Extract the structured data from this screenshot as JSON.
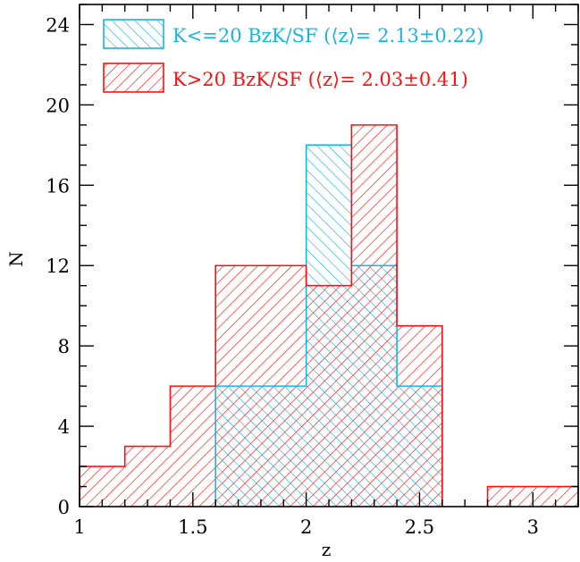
{
  "chart_data": {
    "type": "bar",
    "xlabel": "z",
    "ylabel": "N",
    "xlim": [
      1,
      3.2
    ],
    "ylim": [
      0,
      25
    ],
    "x_ticks": [
      "1",
      "1.5",
      "2",
      "2.5",
      "3"
    ],
    "y_ticks": [
      "0",
      "4",
      "8",
      "12",
      "16",
      "20",
      "24"
    ],
    "bin_width": 0.2,
    "series": [
      {
        "name": "K<=20 BzK/SF (⟨z⟩= 2.13±0.22)",
        "color": "#19b4e6",
        "hatch": "backslash",
        "bin_starts": [
          1.0,
          1.2,
          1.4,
          1.6,
          1.8,
          2.0,
          2.2,
          2.4,
          2.6,
          2.8,
          3.0
        ],
        "values": [
          0,
          0,
          0,
          6,
          6,
          18,
          12,
          6,
          0,
          0,
          0
        ]
      },
      {
        "name": "K>20 BzK/SF (⟨z⟩= 2.03±0.41)",
        "color": "#ff1010",
        "hatch": "slash",
        "bin_starts": [
          1.0,
          1.2,
          1.4,
          1.6,
          1.8,
          2.0,
          2.2,
          2.4,
          2.6,
          2.8,
          3.0
        ],
        "values": [
          2,
          3,
          6,
          12,
          12,
          11,
          19,
          9,
          0,
          1,
          1
        ]
      }
    ],
    "legend_position": "top-left"
  }
}
